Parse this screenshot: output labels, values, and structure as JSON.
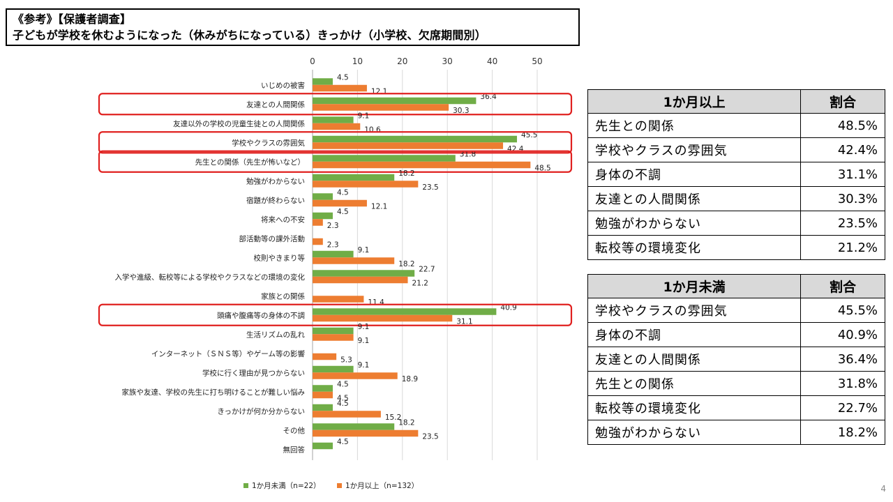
{
  "title": {
    "line1": "《参考》【保護者調査】",
    "line2": "子どもが学校を休むようになった（休みがちになっている）きっかけ（小学校、欠席期間別）"
  },
  "chart_data": {
    "type": "bar",
    "orientation": "horizontal",
    "xlim": [
      0,
      50
    ],
    "xticks": [
      0,
      10,
      20,
      30,
      40,
      50
    ],
    "categories": [
      "いじめの被害",
      "友達との人間関係",
      "友達以外の学校の児童生徒との人間関係",
      "学校やクラスの雰囲気",
      "先生との関係（先生が怖いなど）",
      "勉強がわからない",
      "宿題が終わらない",
      "将来への不安",
      "部活動等の課外活動",
      "校則やきまり等",
      "入学や進級、転校等による学校やクラスなどの環境の変化",
      "家族との関係",
      "頭痛や腹痛等の身体の不調",
      "生活リズムの乱れ",
      "インターネット（ＳＮＳ等）やゲーム等の影響",
      "学校に行く理由が見つからない",
      "家族や友達、学校の先生に打ち明けることが難しい悩み",
      "きっかけが何か分からない",
      "その他",
      "無回答"
    ],
    "series": [
      {
        "name": "1か月未満（n=22）",
        "color": "#70ad47",
        "values": [
          4.5,
          36.4,
          9.1,
          45.5,
          31.8,
          18.2,
          4.5,
          4.5,
          null,
          9.1,
          22.7,
          null,
          40.9,
          9.1,
          null,
          9.1,
          4.5,
          4.5,
          18.2,
          4.5
        ]
      },
      {
        "name": "1か月以上（n=132）",
        "color": "#ed7d31",
        "values": [
          12.1,
          30.3,
          10.6,
          42.4,
          48.5,
          23.5,
          12.1,
          2.3,
          2.3,
          18.2,
          21.2,
          11.4,
          31.1,
          9.1,
          5.3,
          18.9,
          4.5,
          15.2,
          23.5,
          null
        ]
      }
    ],
    "highlighted_categories": [
      "友達との人間関係",
      "学校やクラスの雰囲気",
      "先生との関係（先生が怖いなど）",
      "頭痛や腹痛等の身体の不調"
    ],
    "highlight_color": "#e0201f",
    "grid": true,
    "legend_position": "bottom"
  },
  "table_over": {
    "header": [
      "1か月以上",
      "割合"
    ],
    "rows": [
      [
        "先生との関係",
        "48.5%"
      ],
      [
        "学校やクラスの雰囲気",
        "42.4%"
      ],
      [
        "身体の不調",
        "31.1%"
      ],
      [
        "友達との人間関係",
        "30.3%"
      ],
      [
        "勉強がわからない",
        "23.5%"
      ],
      [
        "転校等の環境変化",
        "21.2%"
      ]
    ]
  },
  "table_under": {
    "header": [
      "1か月未満",
      "割合"
    ],
    "rows": [
      [
        "学校やクラスの雰囲気",
        "45.5%"
      ],
      [
        "身体の不調",
        "40.9%"
      ],
      [
        "友達との人間関係",
        "36.4%"
      ],
      [
        "先生との関係",
        "31.8%"
      ],
      [
        "転校等の環境変化",
        "22.7%"
      ],
      [
        "勉強がわからない",
        "18.2%"
      ]
    ]
  },
  "page_number": "4"
}
